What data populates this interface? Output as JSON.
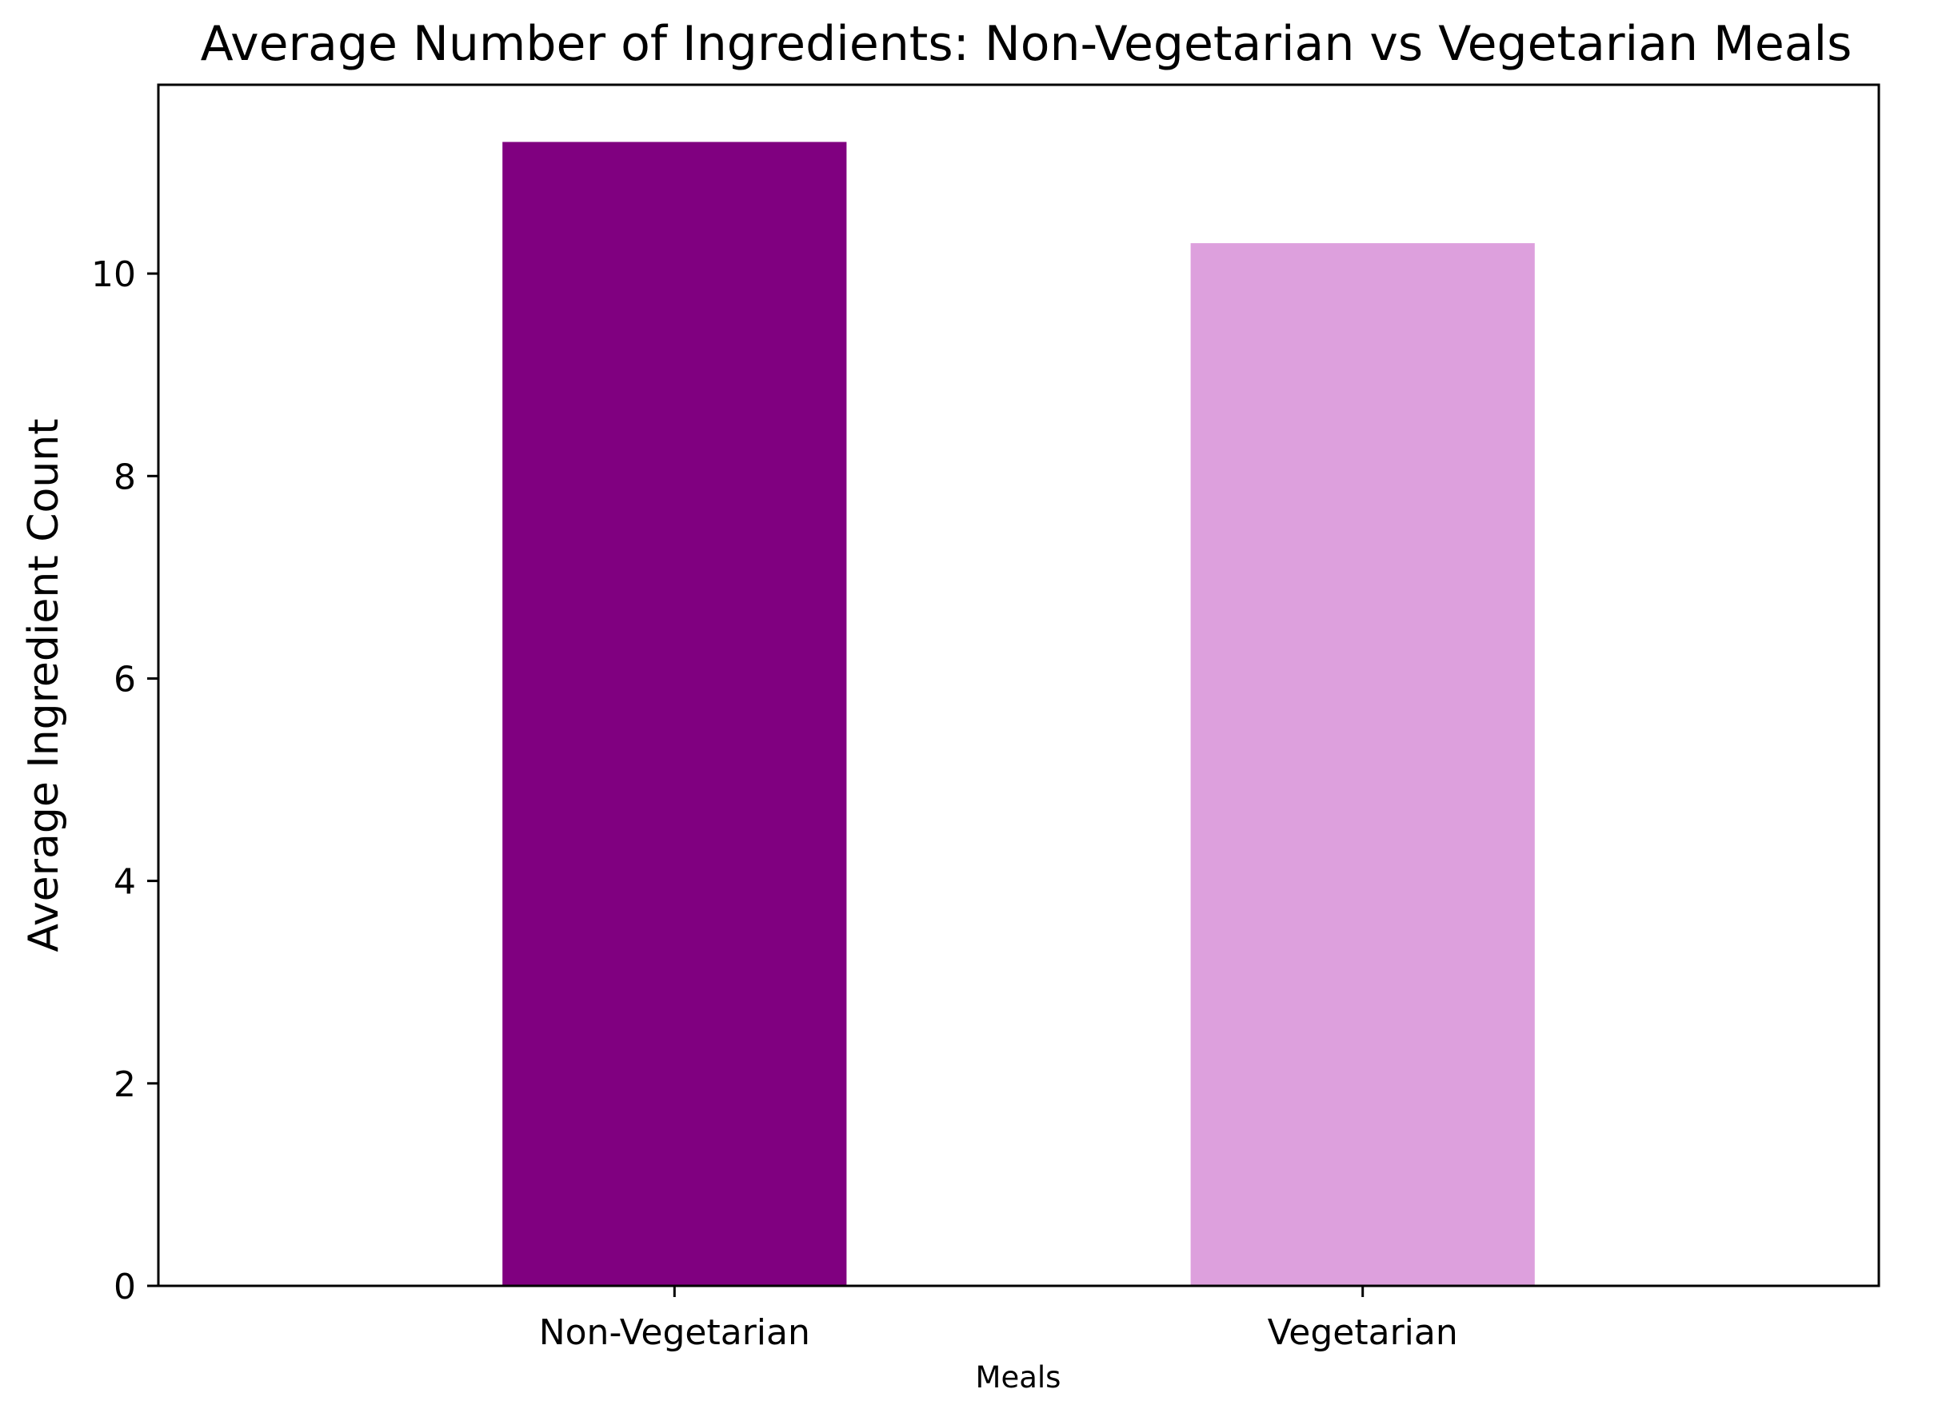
{
  "chart_data": {
    "type": "bar",
    "title": "Average Number of Ingredients: Non-Vegetarian vs Vegetarian Meals",
    "xlabel": "Meals",
    "ylabel": "Average Ingredient Count",
    "categories": [
      "Non-Vegetarian",
      "Vegetarian"
    ],
    "values": [
      11.3,
      10.3
    ],
    "colors": [
      "#800080",
      "#dda0dd"
    ],
    "ylim": [
      0,
      11.865
    ],
    "yticks": [
      0,
      2,
      4,
      6,
      8,
      10
    ],
    "grid": false,
    "legend": "none"
  }
}
